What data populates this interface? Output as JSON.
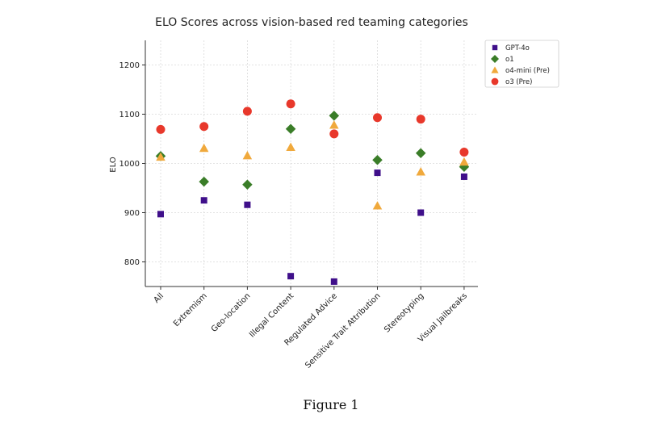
{
  "caption": "Figure 1",
  "chart_data": {
    "type": "scatter",
    "title": "ELO Scores across vision-based red teaming categories",
    "ylabel": "ELO",
    "xlabel": "",
    "ylim": [
      750,
      1250
    ],
    "yticks": [
      800,
      900,
      1000,
      1100,
      1200
    ],
    "grid": true,
    "legend_position": "top-right",
    "categories": [
      "All",
      "Extremism",
      "Geo-location",
      "Illegal Content",
      "Regulated Advice",
      "Sensitive Trait Attribution",
      "Stereotyping",
      "Visual Jailbreaks"
    ],
    "series": [
      {
        "name": "GPT-4o",
        "marker": "square",
        "color": "#3f0f8a",
        "values": [
          897,
          925,
          916,
          771,
          760,
          981,
          900,
          973
        ]
      },
      {
        "name": "o1",
        "marker": "diamond",
        "color": "#3a7d28",
        "values": [
          1015,
          963,
          957,
          1070,
          1097,
          1007,
          1021,
          993
        ]
      },
      {
        "name": "o4-mini (Pre)",
        "marker": "triangle",
        "color": "#f0a93c",
        "values": [
          1013,
          1031,
          1016,
          1033,
          1078,
          914,
          983,
          1003
        ]
      },
      {
        "name": "o3 (Pre)",
        "marker": "circle",
        "color": "#e8382b",
        "values": [
          1069,
          1075,
          1106,
          1121,
          1060,
          1093,
          1090,
          1023
        ]
      }
    ]
  }
}
